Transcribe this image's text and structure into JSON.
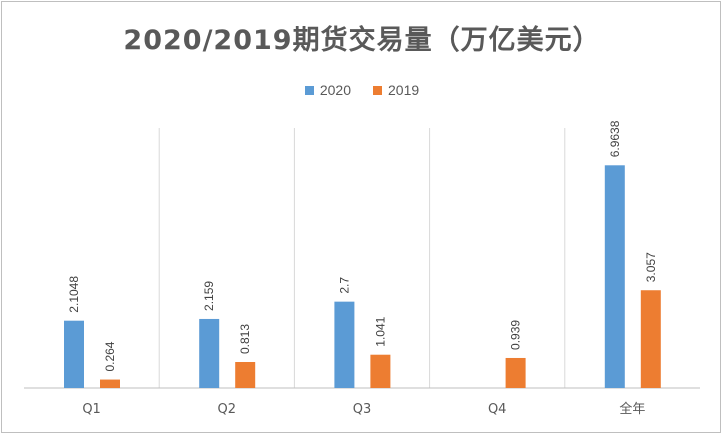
{
  "chart_data": {
    "type": "bar",
    "title": "2020/2019期货交易量（万亿美元）",
    "xlabel": "",
    "ylabel": "",
    "categories": [
      "Q1",
      "Q2",
      "Q3",
      "Q4",
      "全年"
    ],
    "series": [
      {
        "name": "2020",
        "color": "#5b9bd5",
        "values": [
          2.1048,
          2.159,
          2.7,
          null,
          6.9638
        ],
        "labels": [
          "2.1048",
          "2.159",
          "2.7",
          "",
          "6.9638"
        ]
      },
      {
        "name": "2019",
        "color": "#ed7d31",
        "values": [
          0.264,
          0.813,
          1.041,
          0.939,
          3.057
        ],
        "labels": [
          "0.264",
          "0.813",
          "1.041",
          "0.939",
          "3.057"
        ]
      }
    ],
    "ylim": [
      0,
      8.13
    ],
    "grid": "vertical",
    "legend_position": "top"
  }
}
